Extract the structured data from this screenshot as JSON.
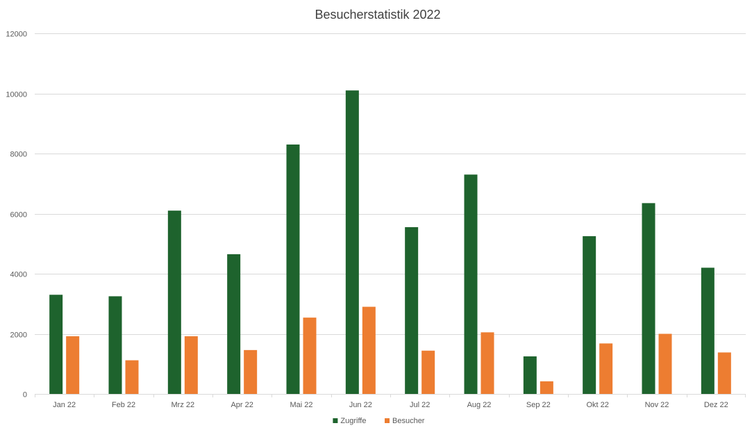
{
  "chart_data": {
    "type": "bar",
    "title": "Besucherstatistik 2022",
    "xlabel": "",
    "ylabel": "",
    "categories": [
      "Jan 22",
      "Feb 22",
      "Mrz 22",
      "Apr 22",
      "Mai 22",
      "Jun 22",
      "Jul 22",
      "Aug 22",
      "Sep 22",
      "Okt 22",
      "Nov 22",
      "Dez 22"
    ],
    "series": [
      {
        "name": "Zugriffe",
        "color": "#1e632d",
        "values": [
          3300,
          3250,
          6100,
          4650,
          8300,
          10100,
          5550,
          7300,
          1250,
          5250,
          6350,
          4200
        ]
      },
      {
        "name": "Besucher",
        "color": "#ed7d31",
        "values": [
          1920,
          1120,
          1920,
          1460,
          2540,
          2900,
          1440,
          2050,
          420,
          1680,
          2000,
          1380
        ]
      }
    ],
    "ylim": [
      0,
      12000
    ],
    "yticks": [
      0,
      2000,
      4000,
      6000,
      8000,
      10000,
      12000
    ],
    "grid": true,
    "legend_position": "bottom"
  }
}
